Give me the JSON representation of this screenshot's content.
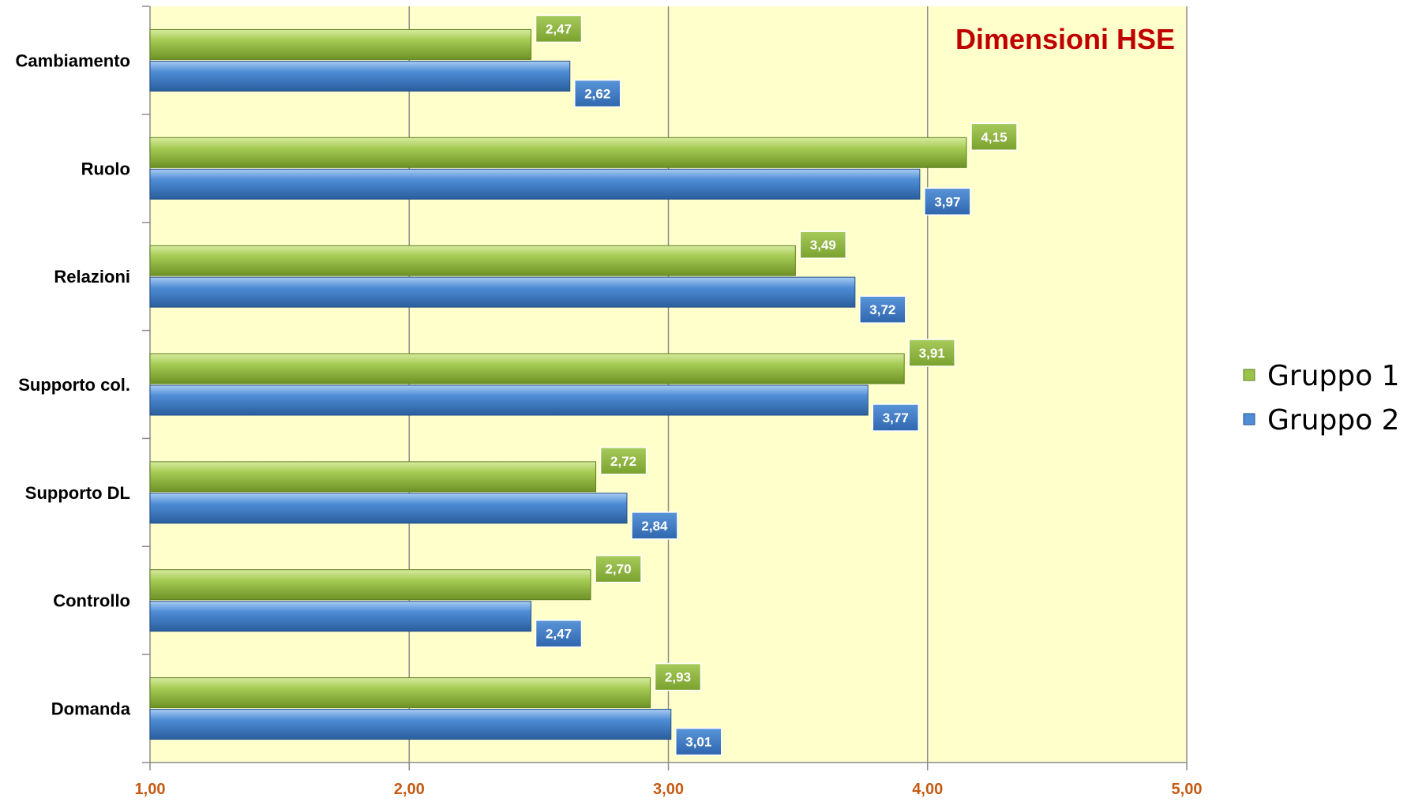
{
  "chart_data": {
    "type": "bar",
    "orientation": "horizontal",
    "title": "Dimensioni HSE",
    "categories": [
      "Domanda",
      "Controllo",
      "Supporto DL",
      "Supporto col.",
      "Relazioni",
      "Ruolo",
      "Cambiamento"
    ],
    "series": [
      {
        "name": "Gruppo 1",
        "color": "#8DB33A",
        "values": [
          2.93,
          2.7,
          2.72,
          3.91,
          3.49,
          4.15,
          2.47
        ],
        "labels": [
          "2,93",
          "2,70",
          "2,72",
          "3,91",
          "3,49",
          "4,15",
          "2,47"
        ]
      },
      {
        "name": "Gruppo 2",
        "color": "#3A78C4",
        "values": [
          3.01,
          2.47,
          2.84,
          3.77,
          3.72,
          3.97,
          2.62
        ],
        "labels": [
          "3,01",
          "2,47",
          "2,84",
          "3,77",
          "3,72",
          "3,97",
          "2,62"
        ]
      }
    ],
    "xlim": [
      1,
      5
    ],
    "xticks": [
      1,
      2,
      3,
      4,
      5
    ],
    "xtick_labels": [
      "1,00",
      "2,00",
      "3,00",
      "4,00",
      "5,00"
    ],
    "grid": "vertical",
    "plot_background": "#FFFFCC",
    "legend_position": "right"
  }
}
